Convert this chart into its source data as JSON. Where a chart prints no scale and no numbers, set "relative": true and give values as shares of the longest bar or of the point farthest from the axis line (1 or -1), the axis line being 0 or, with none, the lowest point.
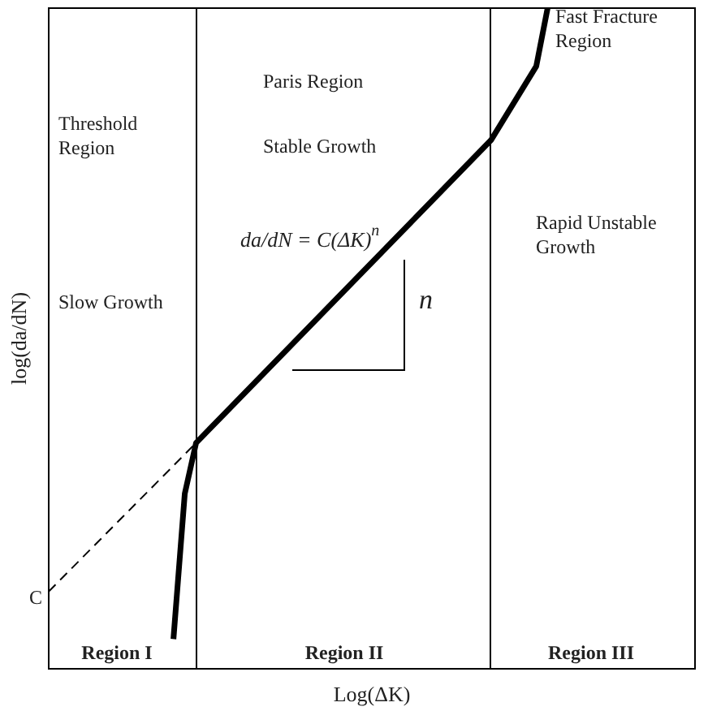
{
  "chart_data": {
    "type": "line",
    "relative": true,
    "tick_labels": false,
    "grid": false,
    "legend": false,
    "marker": "none",
    "xlabel": "Log(ΔK)",
    "ylabel": "log(da/dN)",
    "categories": [
      null,
      null,
      null,
      null,
      null,
      null,
      null,
      null,
      null,
      null,
      null,
      null,
      null,
      null,
      null,
      null,
      null,
      null,
      null,
      null,
      null,
      null,
      null,
      null,
      null,
      null,
      null,
      null,
      null,
      null,
      null,
      null,
      null,
      null,
      null,
      null,
      null,
      null,
      null,
      null,
      null,
      null,
      null,
      null,
      null,
      null,
      null,
      null,
      null,
      null,
      null,
      null,
      null,
      null,
      null,
      null,
      null,
      null
    ],
    "series": [
      {
        "values": [
          null,
          null,
          null,
          null,
          null,
          null,
          null,
          null,
          null,
          null,
          null,
          0.045,
          0.265,
          0.342,
          null,
          null,
          null,
          null,
          null,
          null,
          null,
          null,
          null,
          null,
          null,
          null,
          null,
          null,
          null,
          null,
          null,
          null,
          null,
          null,
          null,
          null,
          null,
          null,
          null,
          0.8,
          null,
          null,
          null,
          0.912,
          1,
          null,
          null,
          null,
          null,
          null,
          null,
          null,
          null,
          null,
          null,
          null,
          null,
          null
        ],
        "color": "#000000"
      },
      {
        "values": [
          0.117,
          null,
          null,
          null,
          null,
          null,
          null,
          null,
          null,
          null,
          null,
          null,
          null,
          0.342,
          null,
          null,
          null,
          null,
          null,
          null,
          null,
          null,
          null,
          null,
          null,
          null,
          null,
          null,
          null,
          null,
          null,
          null,
          null,
          null,
          null,
          null,
          null,
          null,
          null,
          null,
          null,
          null,
          null,
          null,
          null,
          null,
          null,
          null,
          null,
          null,
          null,
          null,
          null,
          null,
          null,
          null,
          null,
          null
        ],
        "color": "#000000",
        "line_style": "dashed"
      }
    ],
    "annotations": [
      "Threshold Region",
      "Slow Growth",
      "Paris Region",
      "Stable Growth",
      "da/dN = C(ΔK)$^{n}$",
      "n",
      "Fast Fracture Region",
      "Rapid Unstable Growth",
      "Region I",
      "Region II",
      "Region III",
      "C"
    ]
  }
}
